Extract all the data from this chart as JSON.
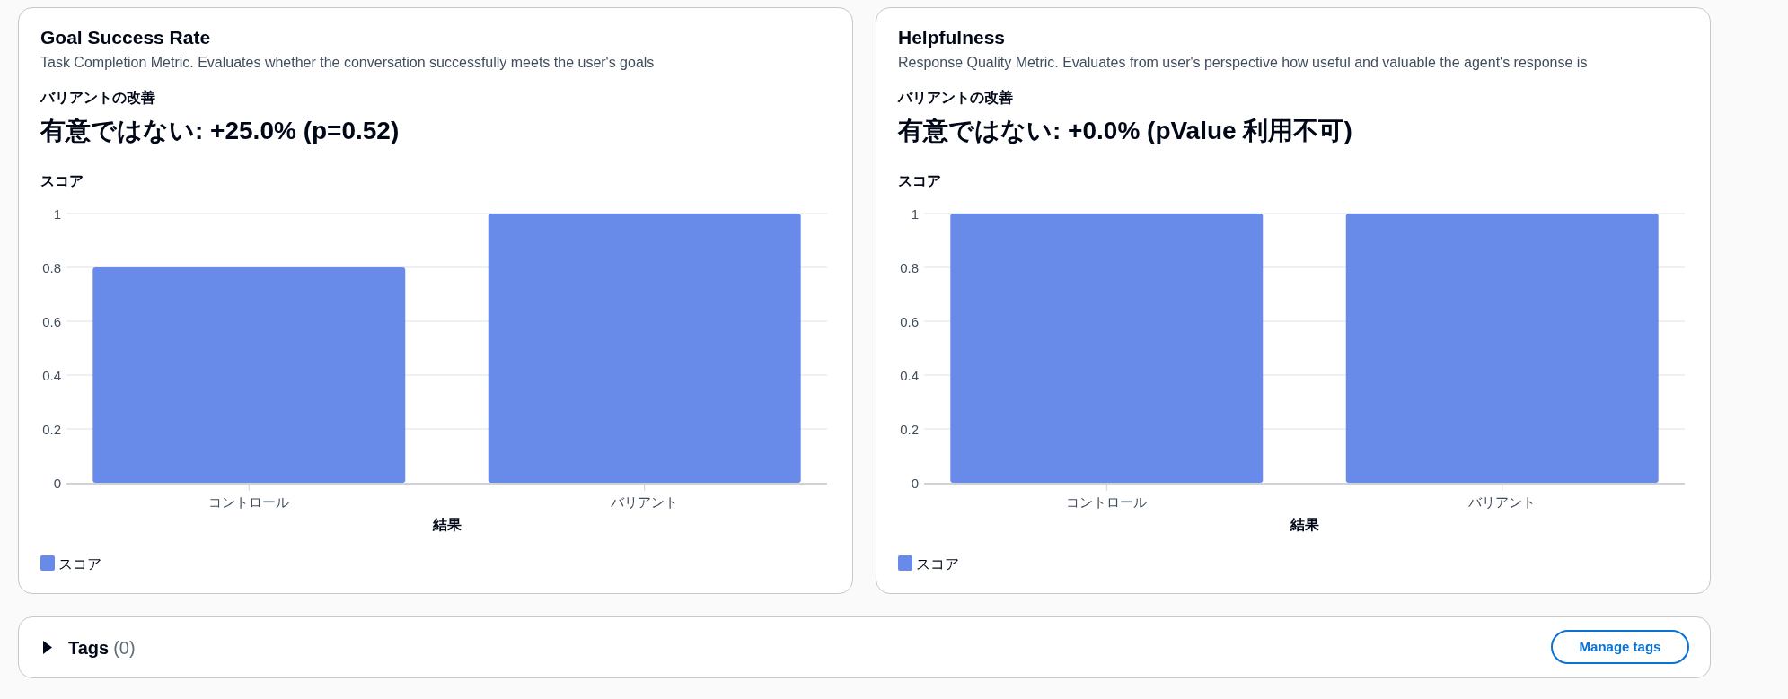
{
  "chart_data": [
    {
      "type": "bar",
      "title": "Goal Success Rate",
      "subtitle": "Task Completion Metric. Evaluates whether the conversation successfully meets the user's goals",
      "annotations": [
        "バリアントの改善",
        "有意ではない: +25.0% (p=0.52)"
      ],
      "ylabel": "スコア",
      "xlabel": "結果",
      "categories": [
        "コントロール",
        "バリアント"
      ],
      "series": [
        {
          "name": "スコア",
          "color": "#688ae8",
          "values": [
            0.8,
            1
          ]
        }
      ],
      "ylim": [
        0,
        1
      ],
      "yticks": [
        0,
        0.2,
        0.4,
        0.6,
        0.8,
        1
      ],
      "grid": "y",
      "legend": "bottom left"
    },
    {
      "type": "bar",
      "title": "Helpfulness",
      "subtitle": "Response Quality Metric. Evaluates from user's perspective how useful and valuable the agent's response is",
      "annotations": [
        "バリアントの改善",
        "有意ではない: +0.0% (pValue 利用不可)"
      ],
      "ylabel": "スコア",
      "xlabel": "結果",
      "categories": [
        "コントロール",
        "バリアント"
      ],
      "series": [
        {
          "name": "スコア",
          "color": "#688ae8",
          "values": [
            1,
            1
          ]
        }
      ],
      "ylim": [
        0,
        1
      ],
      "yticks": [
        0,
        0.2,
        0.4,
        0.6,
        0.8,
        1
      ],
      "grid": "y",
      "legend": "bottom left"
    },
    {
      "type": "other",
      "title": "Tags",
      "annotations": [
        "(0)",
        "Manage tags"
      ]
    }
  ]
}
